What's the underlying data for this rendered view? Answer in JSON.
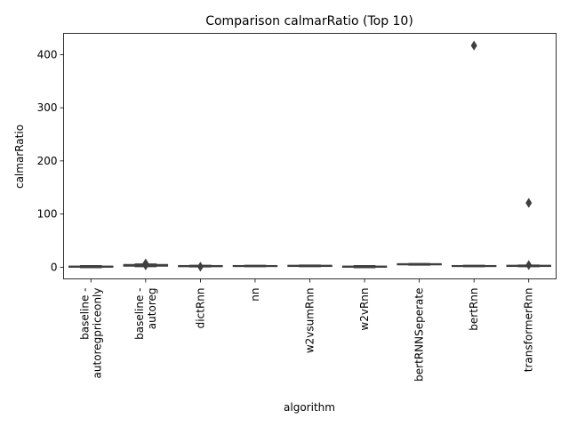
{
  "chart_data": {
    "type": "box",
    "title": "Comparison calmarRatio (Top 10)",
    "xlabel": "algorithm",
    "ylabel": "calmarRatio",
    "ylim": [
      -22,
      440
    ],
    "yticks": [
      0,
      100,
      200,
      300,
      400
    ],
    "grid": false,
    "categories": [
      [
        "baseline -",
        "autoregpriceonly"
      ],
      [
        "baseline -",
        "autoreg"
      ],
      [
        "dictRnn"
      ],
      [
        "nn"
      ],
      [
        "w2vsumRnn"
      ],
      [
        "w2vRnn"
      ],
      [
        "bertRNNSeperate"
      ],
      [
        "bertRnn"
      ],
      [
        "transformerRnn"
      ]
    ],
    "boxes": [
      {
        "q1": 0.0,
        "median": 1.0,
        "q3": 2.0,
        "whislo": -1.0,
        "whishi": 3.0,
        "fliers": []
      },
      {
        "q1": 2.0,
        "median": 3.5,
        "q3": 5.0,
        "whislo": 1.0,
        "whishi": 6.0,
        "fliers": [
          7.0,
          3.5
        ]
      },
      {
        "q1": 1.0,
        "median": 2.0,
        "q3": 3.0,
        "whislo": 0.5,
        "whishi": 3.5,
        "fliers": [
          1.0
        ]
      },
      {
        "q1": 1.5,
        "median": 2.5,
        "q3": 3.0,
        "whislo": 1.0,
        "whishi": 3.5,
        "fliers": []
      },
      {
        "q1": 1.5,
        "median": 2.5,
        "q3": 3.5,
        "whislo": 1.0,
        "whishi": 4.0,
        "fliers": []
      },
      {
        "q1": 0.0,
        "median": 1.0,
        "q3": 2.0,
        "whislo": -1.0,
        "whishi": 3.0,
        "fliers": []
      },
      {
        "q1": 4.5,
        "median": 5.5,
        "q3": 6.5,
        "whislo": 4.0,
        "whishi": 7.0,
        "fliers": []
      },
      {
        "q1": 1.5,
        "median": 2.5,
        "q3": 3.0,
        "whislo": 1.0,
        "whishi": 3.5,
        "fliers": [
          417.0
        ]
      },
      {
        "q1": 1.5,
        "median": 2.5,
        "q3": 3.5,
        "whislo": 1.0,
        "whishi": 4.0,
        "fliers": [
          121.0,
          4.0
        ]
      }
    ],
    "colors": {
      "box_fill": "#3a5e8c",
      "line": "#3f3f3f",
      "axis": "#000000"
    }
  }
}
